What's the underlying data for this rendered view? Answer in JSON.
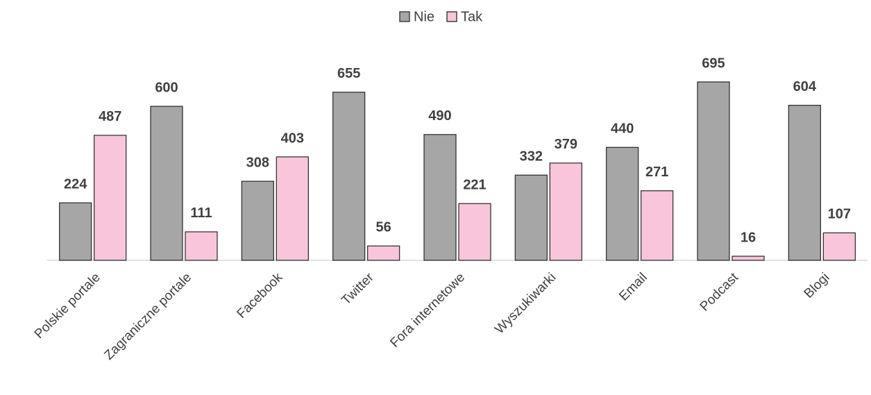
{
  "chart_data": {
    "type": "bar",
    "categories": [
      "Polskie portale",
      "Zagraniczne portale",
      "Facebook",
      "Twitter",
      "Fora internetowe",
      "Wyszukiwarki",
      "Email",
      "Podcast",
      "Blogi"
    ],
    "series": [
      {
        "name": "Nie",
        "color": "#a6a6a6",
        "values": [
          224,
          600,
          308,
          655,
          490,
          332,
          440,
          695,
          604
        ]
      },
      {
        "name": "Tak",
        "color": "#f8c5da",
        "values": [
          487,
          111,
          403,
          56,
          221,
          379,
          271,
          16,
          107
        ]
      }
    ],
    "legend": "top"
  }
}
